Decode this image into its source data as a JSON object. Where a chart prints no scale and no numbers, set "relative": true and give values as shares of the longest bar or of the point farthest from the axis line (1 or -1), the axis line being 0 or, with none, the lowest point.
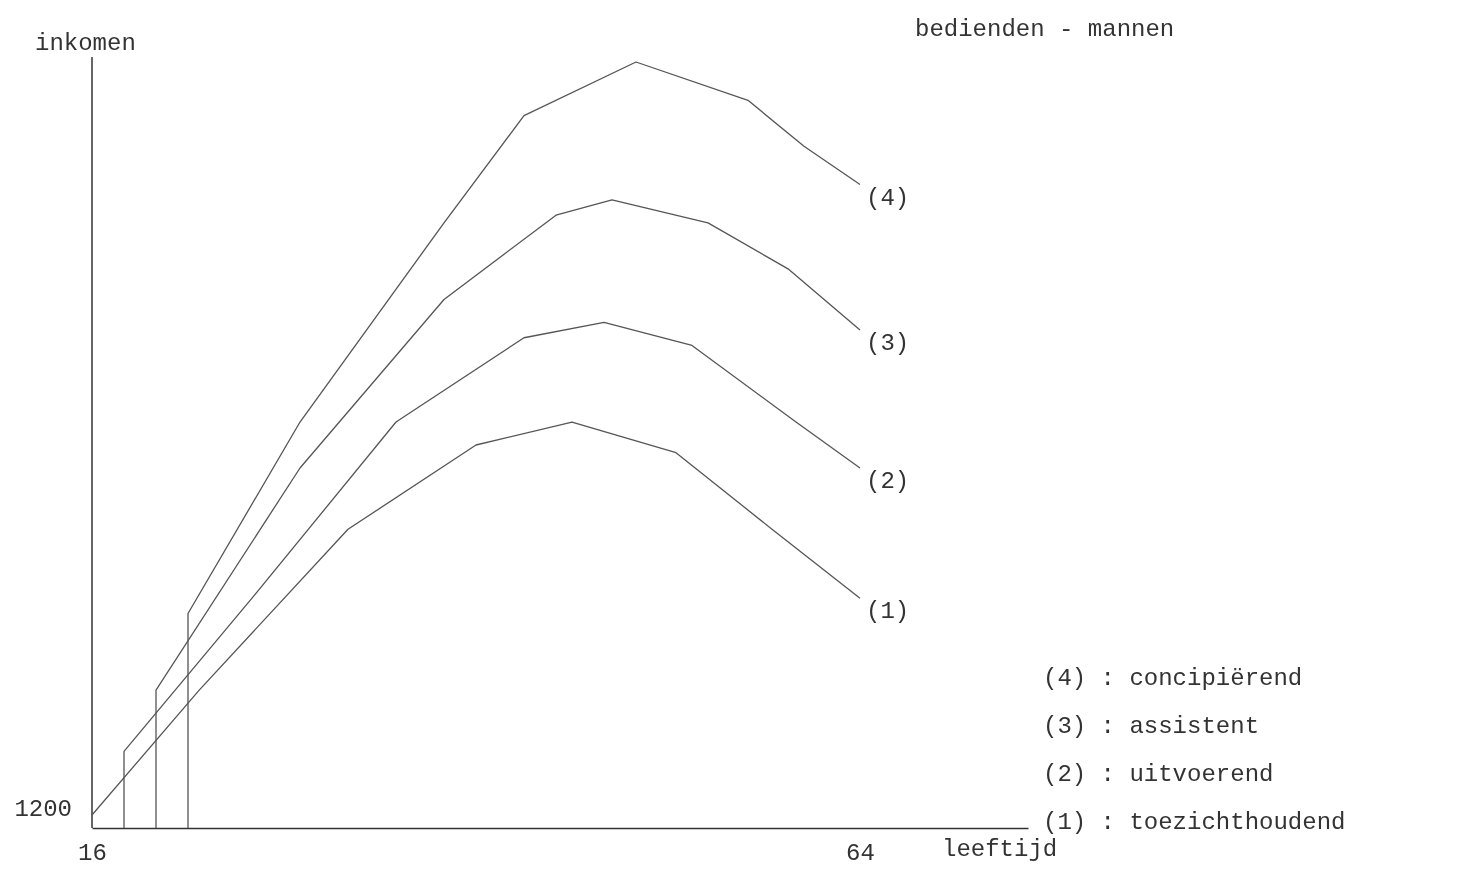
{
  "chart_data": {
    "type": "line",
    "title": "bedienden - mannen",
    "xlabel": "leeftijd",
    "ylabel": "inkomen",
    "relative": true,
    "xlim": [
      16,
      74.5
    ],
    "xticks": [
      16,
      64
    ],
    "series": [
      {
        "name": "(1)",
        "color": "#555555",
        "x": [
          16,
          22.7,
          32,
          40,
          46,
          52.5,
          58.5,
          64
        ],
        "values": [
          0.017,
          0.18,
          0.39,
          0.5,
          0.53,
          0.49,
          0.39,
          0.3
        ]
      },
      {
        "name": "(2)",
        "color": "#555555",
        "x": [
          18,
          18,
          26,
          35,
          43,
          48,
          53.5,
          60,
          64
        ],
        "values": [
          0,
          0.1,
          0.3,
          0.53,
          0.64,
          0.66,
          0.63,
          0.53,
          0.47
        ]
      },
      {
        "name": "(3)",
        "color": "#555555",
        "x": [
          20,
          20,
          29,
          38,
          45,
          48.5,
          54.5,
          59.5,
          64
        ],
        "values": [
          0,
          0.18,
          0.47,
          0.69,
          0.8,
          0.82,
          0.79,
          0.73,
          0.65
        ]
      },
      {
        "name": "(4)",
        "color": "#555555",
        "x": [
          22,
          22,
          29,
          38,
          43,
          50,
          57,
          60.5,
          64
        ],
        "values": [
          0,
          0.28,
          0.53,
          0.79,
          0.93,
          1,
          0.95,
          0.89,
          0.84
        ]
      }
    ],
    "annotations": [
      "1200",
      "(4) : concipiërend",
      "(3) : assistent",
      "(2) : uitvoerend",
      "(1) : toezichthoudend"
    ]
  }
}
